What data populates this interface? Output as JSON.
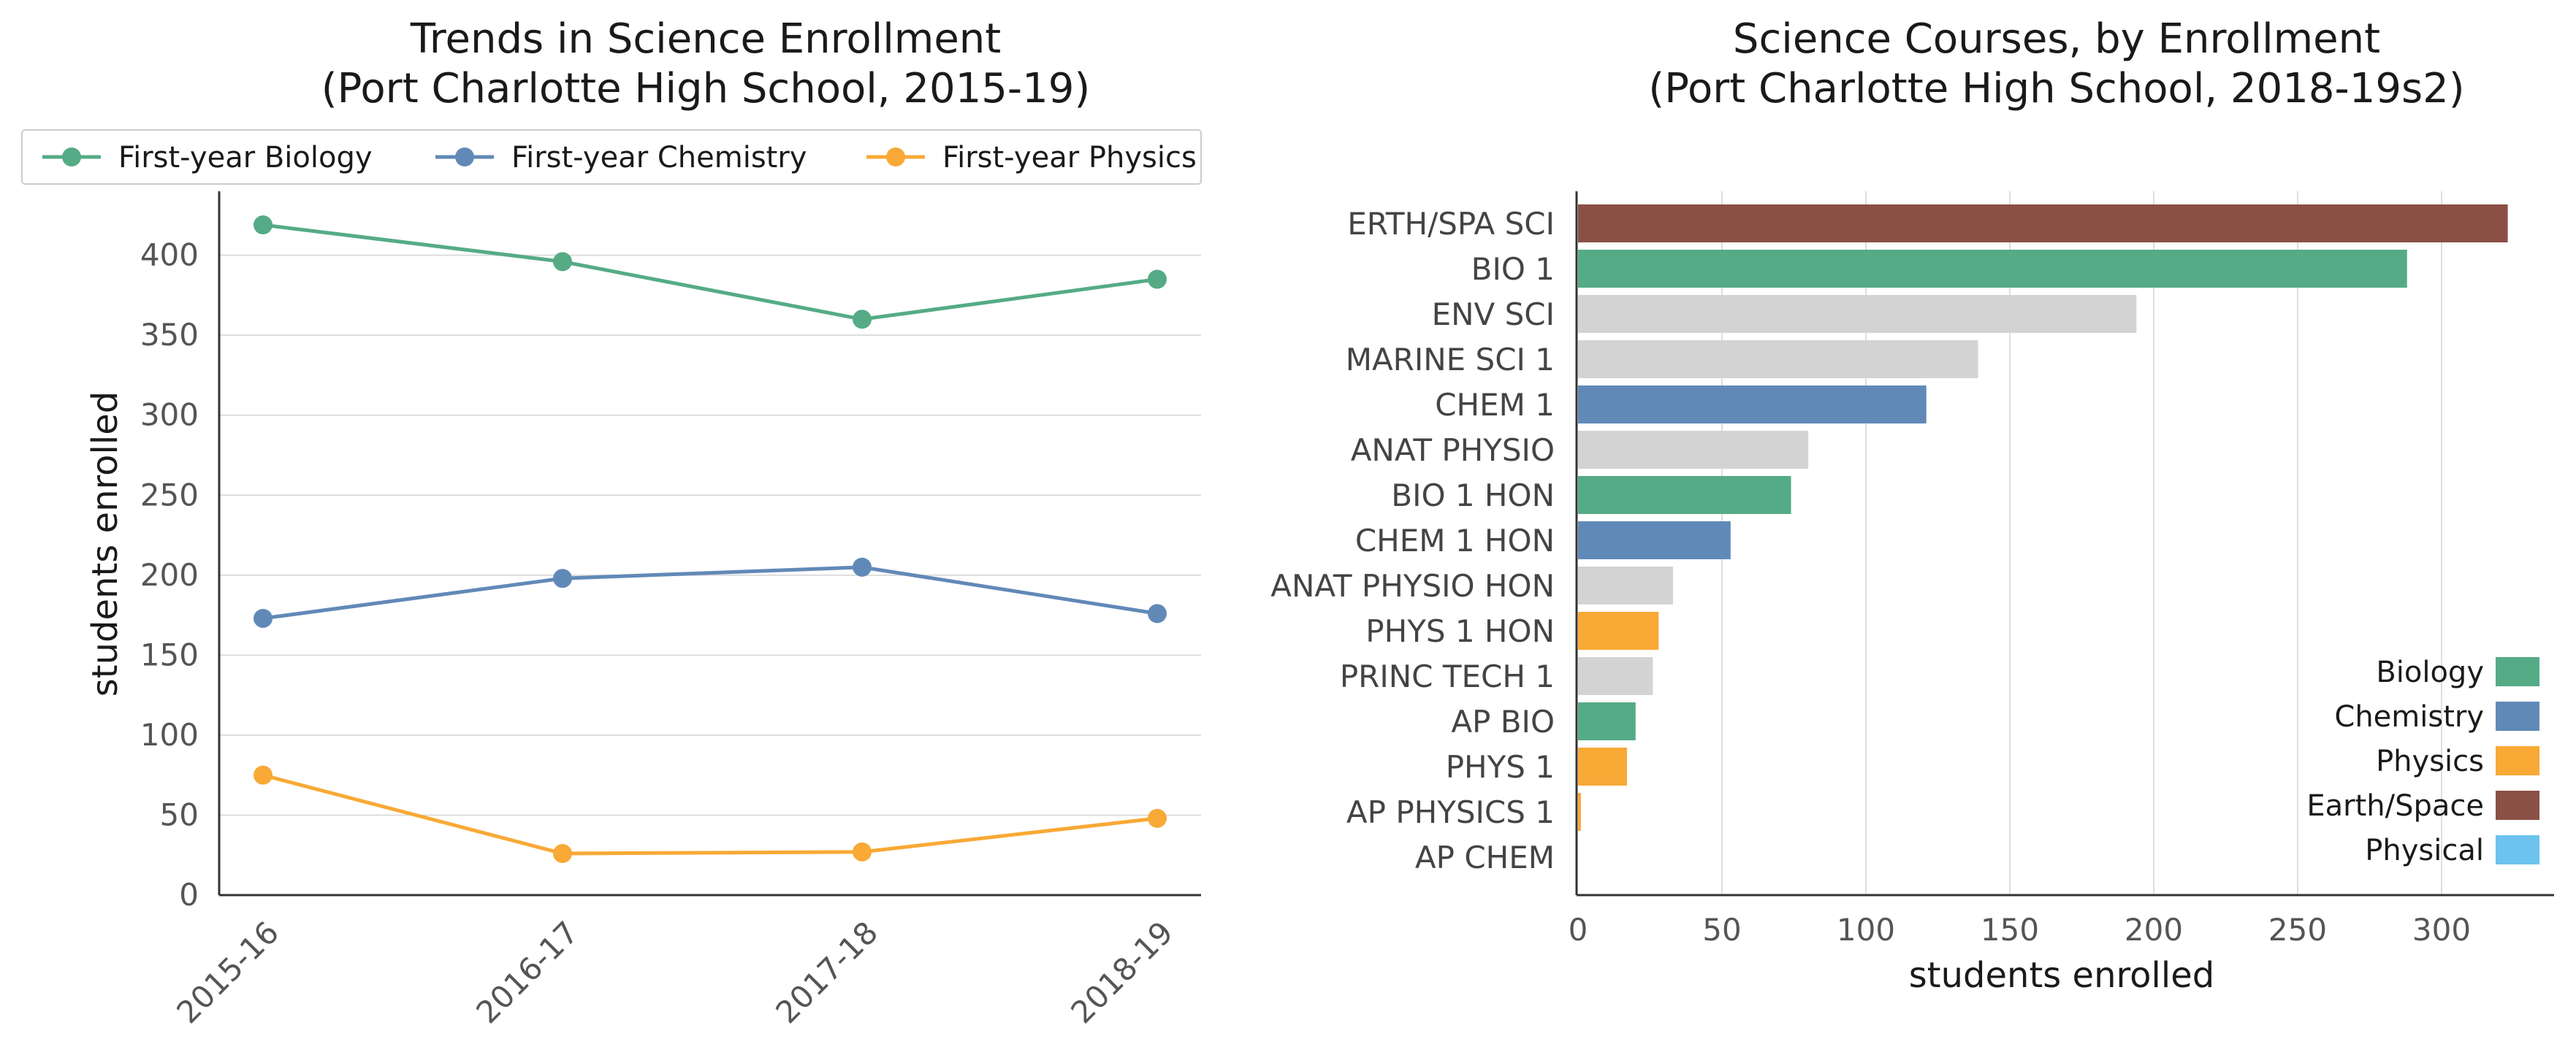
{
  "chart_data": [
    {
      "type": "line",
      "title_line1": "Trends in Science Enrollment",
      "title_line2": "(Port Charlotte High School, 2015-19)",
      "xlabel": "",
      "ylabel": "students enrolled",
      "categories": [
        "2015-16",
        "2016-17",
        "2017-18",
        "2018-19"
      ],
      "ylim": [
        0,
        440
      ],
      "yticks": [
        0,
        50,
        100,
        150,
        200,
        250,
        300,
        350,
        400
      ],
      "grid": "horizontal",
      "legend_position": "top",
      "series": [
        {
          "name": "First-year Biology",
          "color": "#55ab85",
          "values": [
            419,
            396,
            360,
            385
          ]
        },
        {
          "name": "First-year Chemistry",
          "color": "#6189b8",
          "values": [
            173,
            198,
            205,
            176
          ]
        },
        {
          "name": "First-year Physics",
          "color": "#f8a936",
          "values": [
            75,
            26,
            27,
            48
          ]
        }
      ]
    },
    {
      "type": "bar",
      "orientation": "horizontal",
      "title_line1": "Science Courses, by Enrollment",
      "title_line2": "(Port Charlotte High School, 2018-19s2)",
      "xlabel": "students enrolled",
      "ylabel": "",
      "xlim": [
        0,
        340
      ],
      "xticks": [
        0,
        50,
        100,
        150,
        200,
        250,
        300
      ],
      "grid": "vertical",
      "legend_position": "lower right",
      "categories": [
        "ERTH/SPA SCI",
        "BIO 1",
        "ENV SCI",
        "MARINE SCI 1",
        "CHEM 1",
        "ANAT PHYSIO",
        "BIO 1 HON",
        "CHEM 1 HON",
        "ANAT PHYSIO HON",
        "PHYS 1 HON",
        "PRINC TECH 1",
        "AP BIO",
        "PHYS 1",
        "AP PHYSICS 1",
        "AP CHEM"
      ],
      "values": [
        323,
        288,
        194,
        139,
        121,
        80,
        74,
        53,
        33,
        28,
        26,
        20,
        17,
        1,
        0
      ],
      "groups": [
        "Earth/Space",
        "Biology",
        "Other",
        "Other",
        "Chemistry",
        "Other",
        "Biology",
        "Chemistry",
        "Other",
        "Physics",
        "Other",
        "Biology",
        "Physics",
        "Physics",
        "Chemistry"
      ],
      "legend": [
        {
          "label": "Biology",
          "color": "#55ab85"
        },
        {
          "label": "Chemistry",
          "color": "#6189b8"
        },
        {
          "label": "Physics",
          "color": "#f8a936"
        },
        {
          "label": "Earth/Space",
          "color": "#8b5045"
        },
        {
          "label": "Physical",
          "color": "#6cc3ee"
        }
      ],
      "other_color": "#d3d3d3"
    }
  ]
}
